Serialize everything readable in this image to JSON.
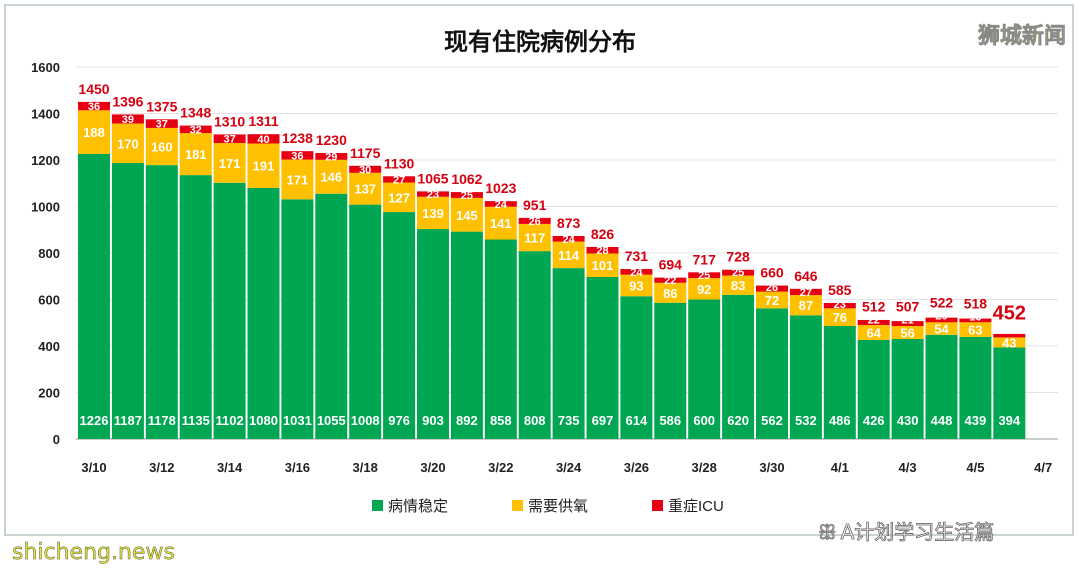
{
  "chart_data": {
    "type": "bar",
    "stacked": true,
    "title": "现有住院病例分布",
    "categories": [
      "3/10",
      "3/11",
      "3/12",
      "3/13",
      "3/14",
      "3/15",
      "3/16",
      "3/17",
      "3/18",
      "3/19",
      "3/20",
      "3/21",
      "3/22",
      "3/23",
      "3/24",
      "3/25",
      "3/26",
      "3/27",
      "3/28",
      "3/29",
      "3/30",
      "3/31",
      "4/1",
      "4/2",
      "4/3",
      "4/4",
      "4/5",
      "4/6"
    ],
    "xtick_labels": [
      "3/10",
      "3/12",
      "3/14",
      "3/16",
      "3/18",
      "3/20",
      "3/22",
      "3/24",
      "3/26",
      "3/28",
      "3/30",
      "4/1",
      "4/3",
      "4/5",
      "4/7"
    ],
    "series": [
      {
        "name": "病情稳定",
        "color": "#00a651",
        "values": [
          1226,
          1187,
          1178,
          1135,
          1102,
          1080,
          1031,
          1055,
          1008,
          976,
          903,
          892,
          858,
          808,
          735,
          697,
          614,
          586,
          600,
          620,
          562,
          532,
          486,
          426,
          430,
          448,
          439,
          394
        ]
      },
      {
        "name": "需要供氧",
        "color": "#ffc000",
        "values": [
          188,
          170,
          160,
          181,
          171,
          191,
          171,
          146,
          137,
          127,
          139,
          145,
          141,
          117,
          114,
          101,
          93,
          86,
          92,
          83,
          72,
          87,
          76,
          64,
          56,
          54,
          63,
          43
        ]
      },
      {
        "name": "重症ICU",
        "color": "#e60012",
        "values": [
          36,
          39,
          37,
          32,
          37,
          40,
          36,
          29,
          30,
          27,
          23,
          25,
          24,
          26,
          24,
          28,
          24,
          22,
          25,
          25,
          26,
          27,
          23,
          22,
          21,
          20,
          16,
          15
        ]
      }
    ],
    "totals": [
      1450,
      1396,
      1375,
      1348,
      1310,
      1311,
      1238,
      1230,
      1175,
      1130,
      1065,
      1062,
      1023,
      951,
      873,
      826,
      731,
      694,
      717,
      728,
      660,
      646,
      585,
      512,
      507,
      522,
      518,
      452
    ],
    "ylim": [
      0,
      1600
    ],
    "yticks": [
      0,
      200,
      400,
      600,
      800,
      1000,
      1200,
      1400,
      1600
    ],
    "grid": true,
    "legend": "bottom"
  },
  "watermarks": {
    "top_right": "狮城新闻",
    "bottom_left": "shicheng.news",
    "bottom_right": "A计划学习生活篇"
  }
}
